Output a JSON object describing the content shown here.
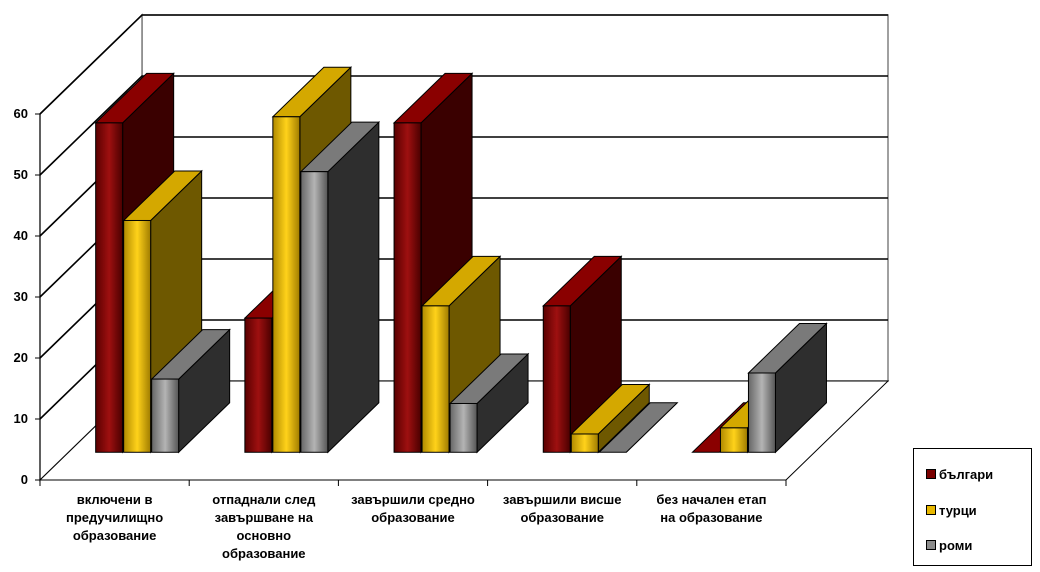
{
  "chart_data": {
    "type": "bar",
    "categories": [
      [
        "включени в",
        "предучилищно",
        "образование"
      ],
      [
        "отпаднали след",
        "завършване на",
        "основно",
        "образование"
      ],
      [
        "завършили средно",
        "образование"
      ],
      [
        "завършили висше",
        "образование"
      ],
      [
        "без начален етап",
        "на образование"
      ]
    ],
    "series": [
      {
        "name": "българи",
        "values": [
          54,
          22,
          54,
          24,
          0
        ],
        "color": "#7a0000"
      },
      {
        "name": "турци",
        "values": [
          38,
          55,
          24,
          3,
          4
        ],
        "color": "#e8b800"
      },
      {
        "name": "роми",
        "values": [
          12,
          46,
          8,
          0,
          13
        ],
        "color": "#8c8c8c"
      }
    ],
    "yticks": [
      "0",
      "10",
      "20",
      "30",
      "40",
      "50",
      "60"
    ],
    "ylim": [
      0,
      60
    ],
    "grid": true,
    "legend_position": "bottom-right"
  }
}
